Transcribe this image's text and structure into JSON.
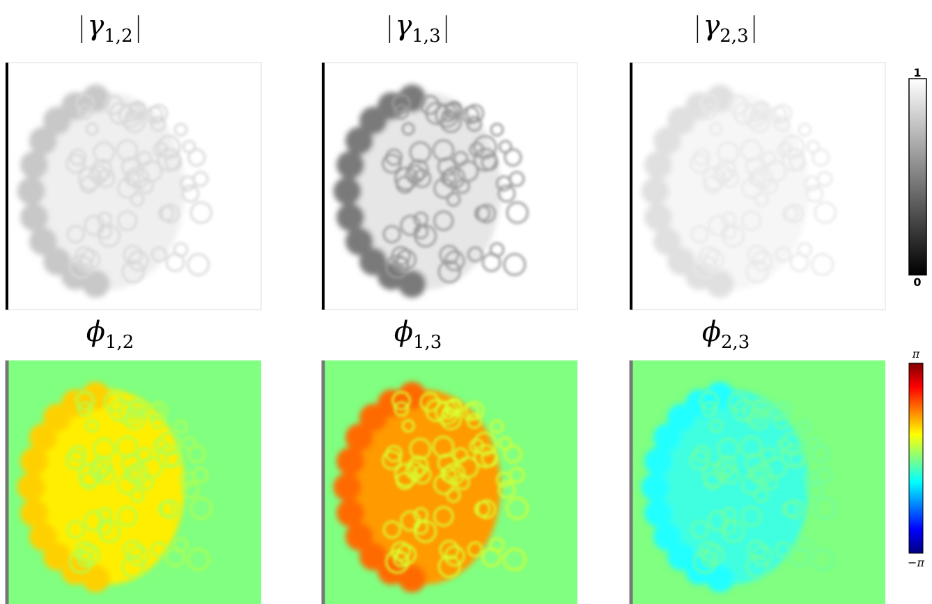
{
  "panels": [
    {
      "symbol": "γ",
      "subscript": "1,2"
    },
    {
      "symbol": "γ",
      "subscript": "1,3"
    },
    {
      "symbol": "γ",
      "subscript": "2,3"
    },
    {
      "symbol": "ϕ",
      "subscript": "1,2"
    },
    {
      "symbol": "ϕ",
      "subscript": "1,3"
    },
    {
      "symbol": "ϕ",
      "subscript": "2,3"
    }
  ],
  "colorbars": [
    {
      "top": "1",
      "bottom": "0"
    },
    {
      "top": "π",
      "bottom": "−π"
    }
  ]
}
